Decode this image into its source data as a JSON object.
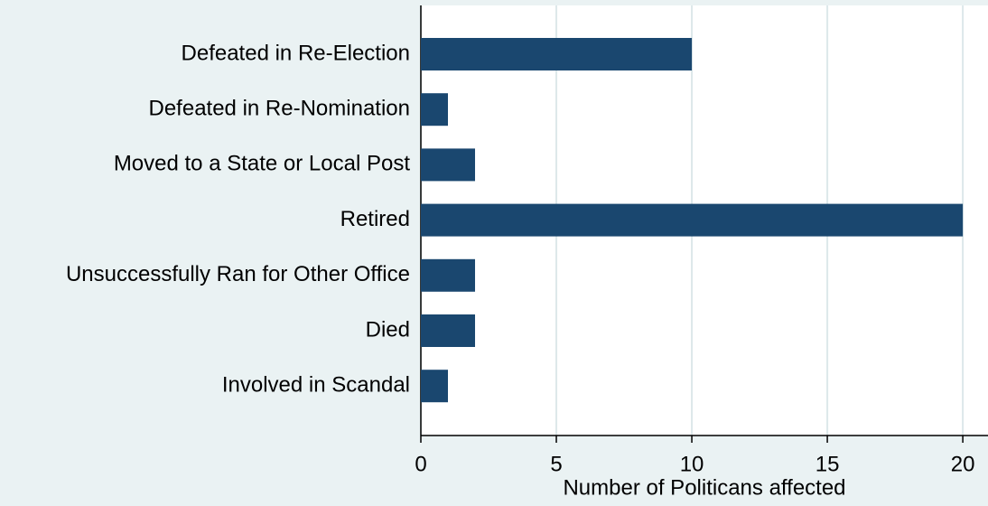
{
  "chart_data": {
    "type": "barh",
    "categories": [
      "Defeated in Re-Election",
      "Defeated in Re-Nomination",
      "Moved to a State or Local Post",
      "Retired",
      "Unsuccessfully Ran for Other Office",
      "Died",
      "Involved in Scandal"
    ],
    "values": [
      10,
      1,
      2,
      20,
      2,
      2,
      1
    ],
    "color": "#1a476f",
    "xlabel": "Number of Politicans affected",
    "xlim": [
      0,
      20.93
    ],
    "xticks": [
      0,
      5,
      10,
      15,
      20
    ],
    "grid": true
  }
}
